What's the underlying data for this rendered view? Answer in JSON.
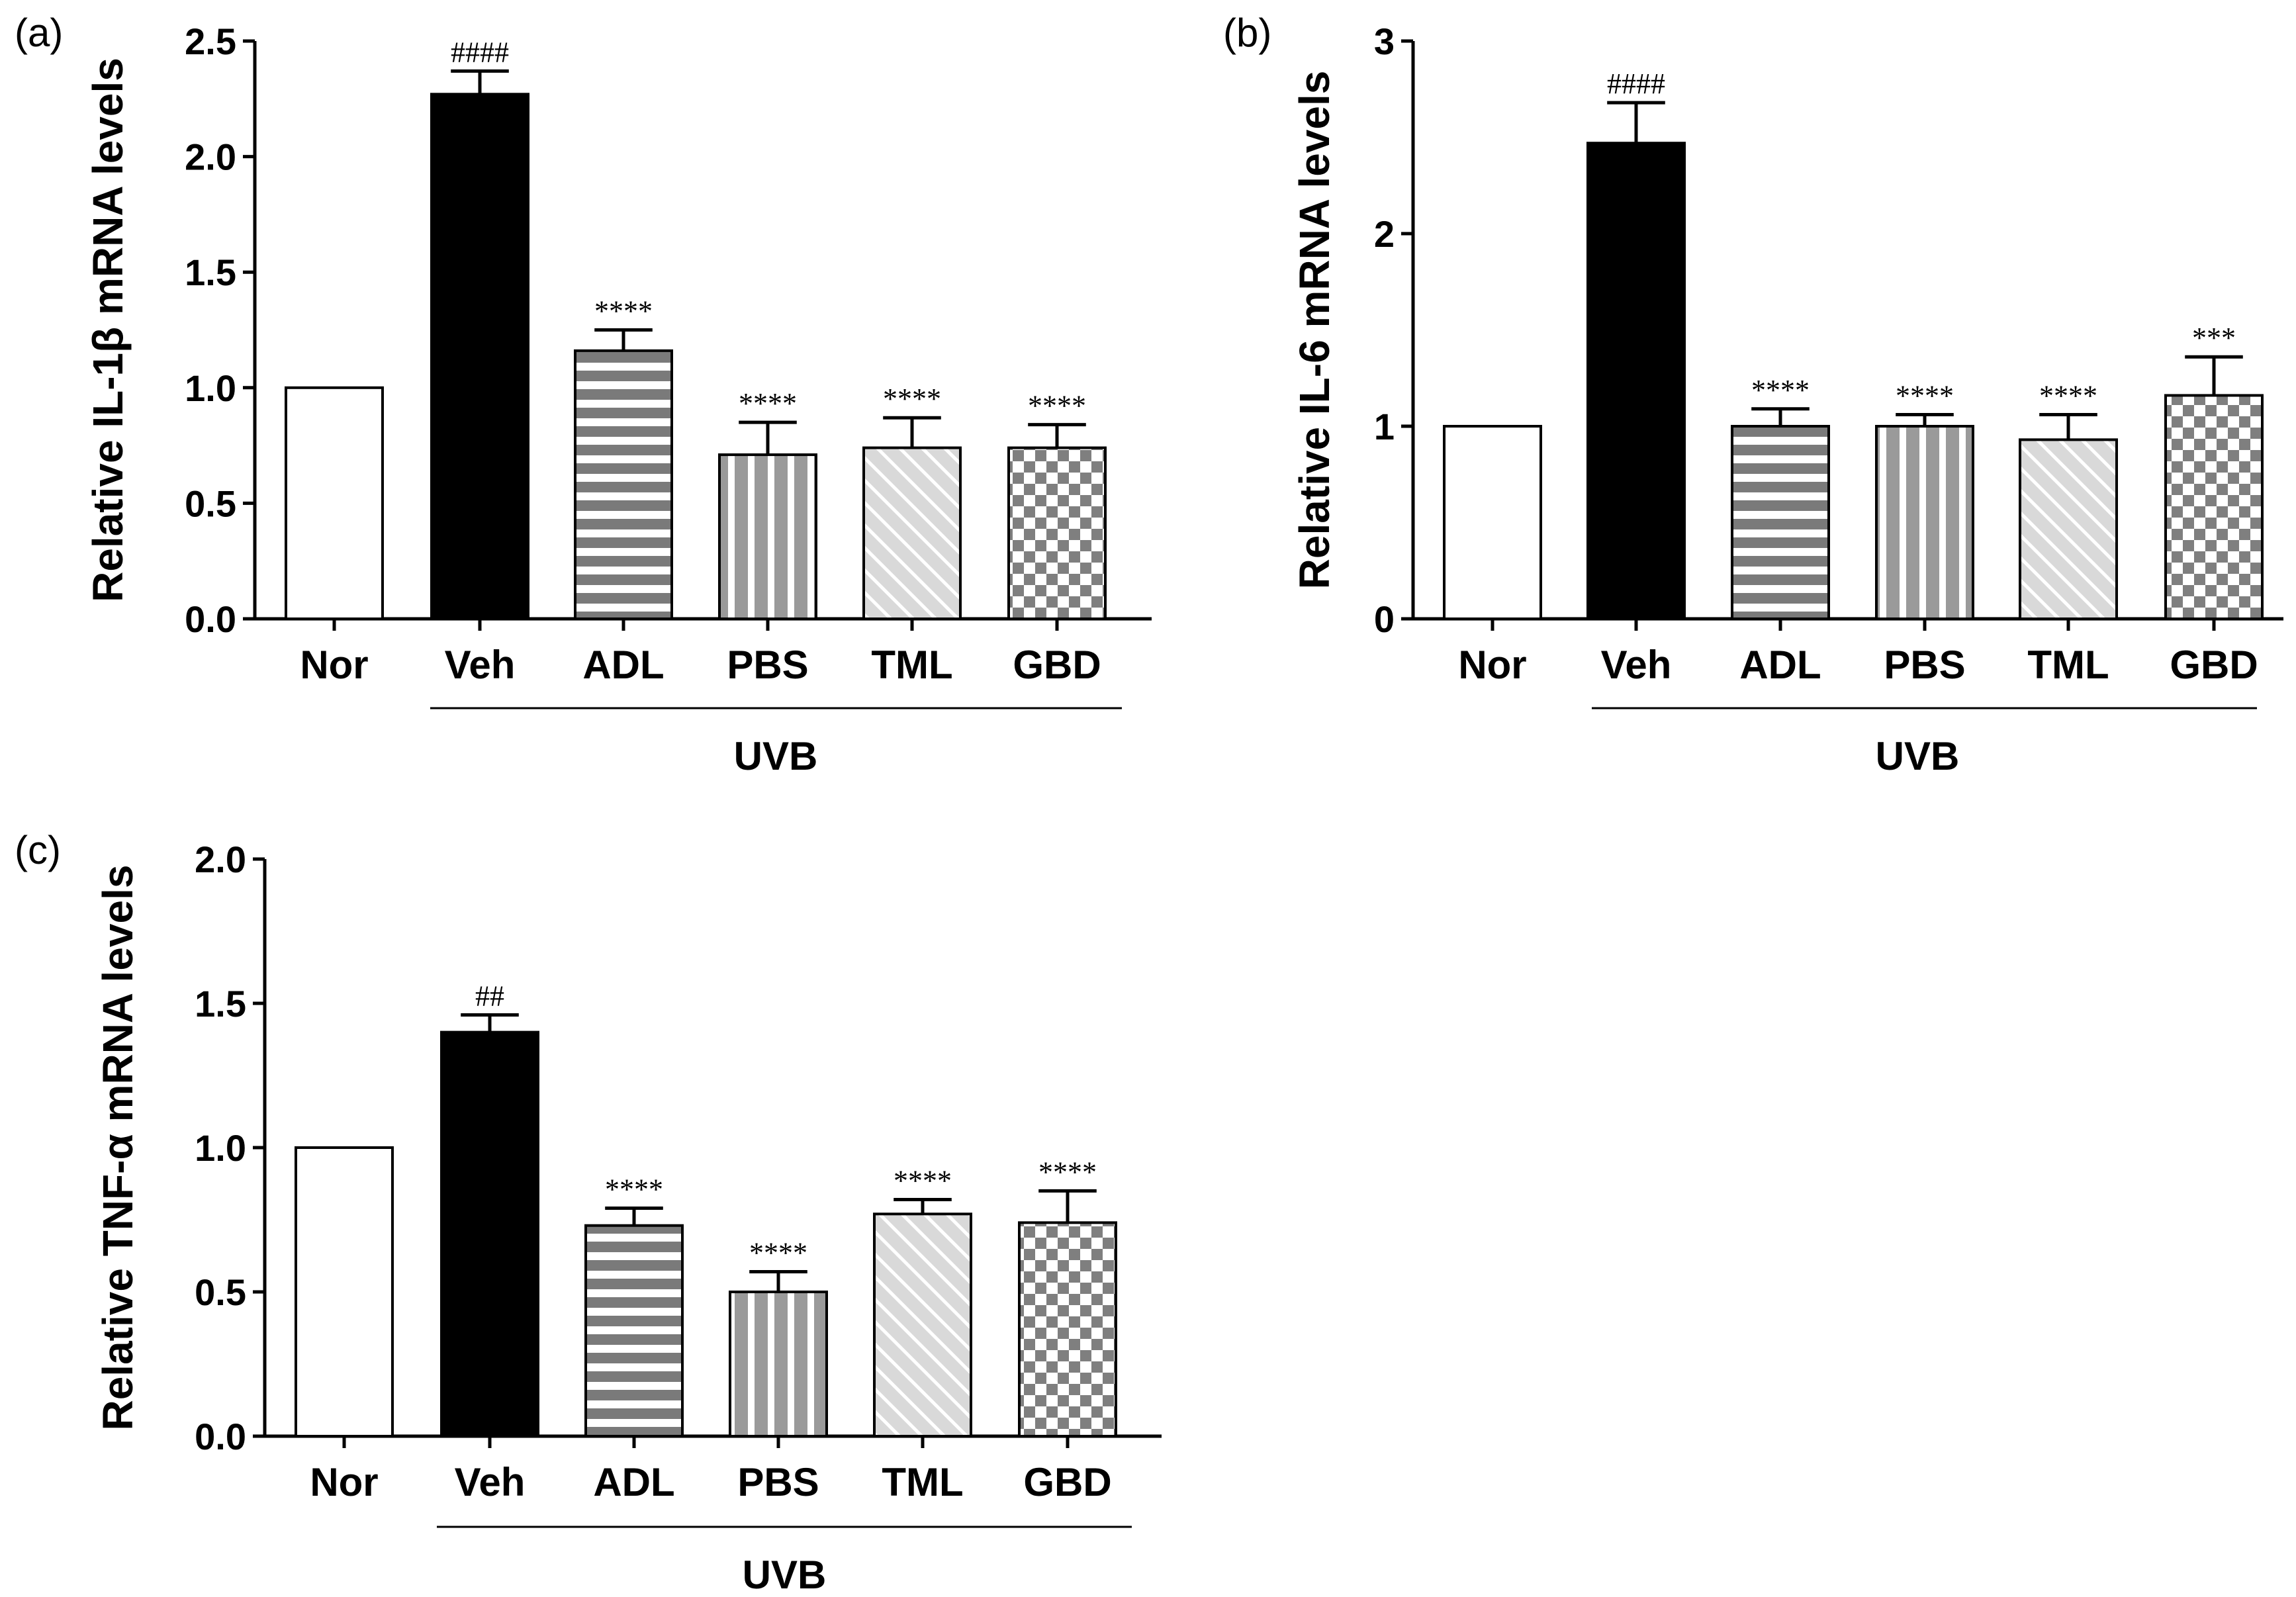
{
  "chart_data": [
    {
      "panel_label": "(a)",
      "type": "bar",
      "categories": [
        "Nor",
        "Veh",
        "ADL",
        "PBS",
        "TML",
        "GBD"
      ],
      "values": [
        1.0,
        2.27,
        1.16,
        0.71,
        0.74,
        0.74
      ],
      "errors": [
        0,
        0.1,
        0.09,
        0.14,
        0.13,
        0.1
      ],
      "annotations": [
        "",
        "####",
        "****",
        "****",
        "****",
        "****"
      ],
      "ylabel": "Relative IL-1β mRNA levels",
      "ylim": [
        0,
        2.5
      ],
      "yticks": [
        "0.0",
        "0.5",
        "1.0",
        "1.5",
        "2.0",
        "2.5"
      ],
      "group_label": "UVB",
      "fills": [
        "white",
        "black",
        "hstripe",
        "vstripe",
        "diagonal",
        "checker"
      ]
    },
    {
      "panel_label": "(b)",
      "type": "bar",
      "categories": [
        "Nor",
        "Veh",
        "ADL",
        "PBS",
        "TML",
        "GBD"
      ],
      "values": [
        1.0,
        2.47,
        1.0,
        1.0,
        0.93,
        1.16
      ],
      "errors": [
        0,
        0.21,
        0.09,
        0.06,
        0.13,
        0.2
      ],
      "annotations": [
        "",
        "####",
        "****",
        "****",
        "****",
        "***"
      ],
      "ylabel": "Relative IL-6 mRNA levels",
      "ylim": [
        0,
        3
      ],
      "yticks": [
        "0",
        "1",
        "2",
        "3"
      ],
      "group_label": "UVB",
      "fills": [
        "white",
        "black",
        "hstripe",
        "vstripe",
        "diagonal",
        "checker"
      ]
    },
    {
      "panel_label": "(c)",
      "type": "bar",
      "categories": [
        "Nor",
        "Veh",
        "ADL",
        "PBS",
        "TML",
        "GBD"
      ],
      "values": [
        1.0,
        1.4,
        0.73,
        0.5,
        0.77,
        0.74
      ],
      "errors": [
        0,
        0.06,
        0.06,
        0.07,
        0.05,
        0.11
      ],
      "annotations": [
        "",
        "##",
        "****",
        "****",
        "****",
        "****"
      ],
      "ylabel": "Relative TNF-α mRNA levels",
      "ylim": [
        0,
        2.0
      ],
      "yticks": [
        "0.0",
        "0.5",
        "1.0",
        "1.5",
        "2.0"
      ],
      "group_label": "UVB",
      "fills": [
        "white",
        "black",
        "hstripe",
        "vstripe",
        "diagonal",
        "checker"
      ]
    }
  ]
}
